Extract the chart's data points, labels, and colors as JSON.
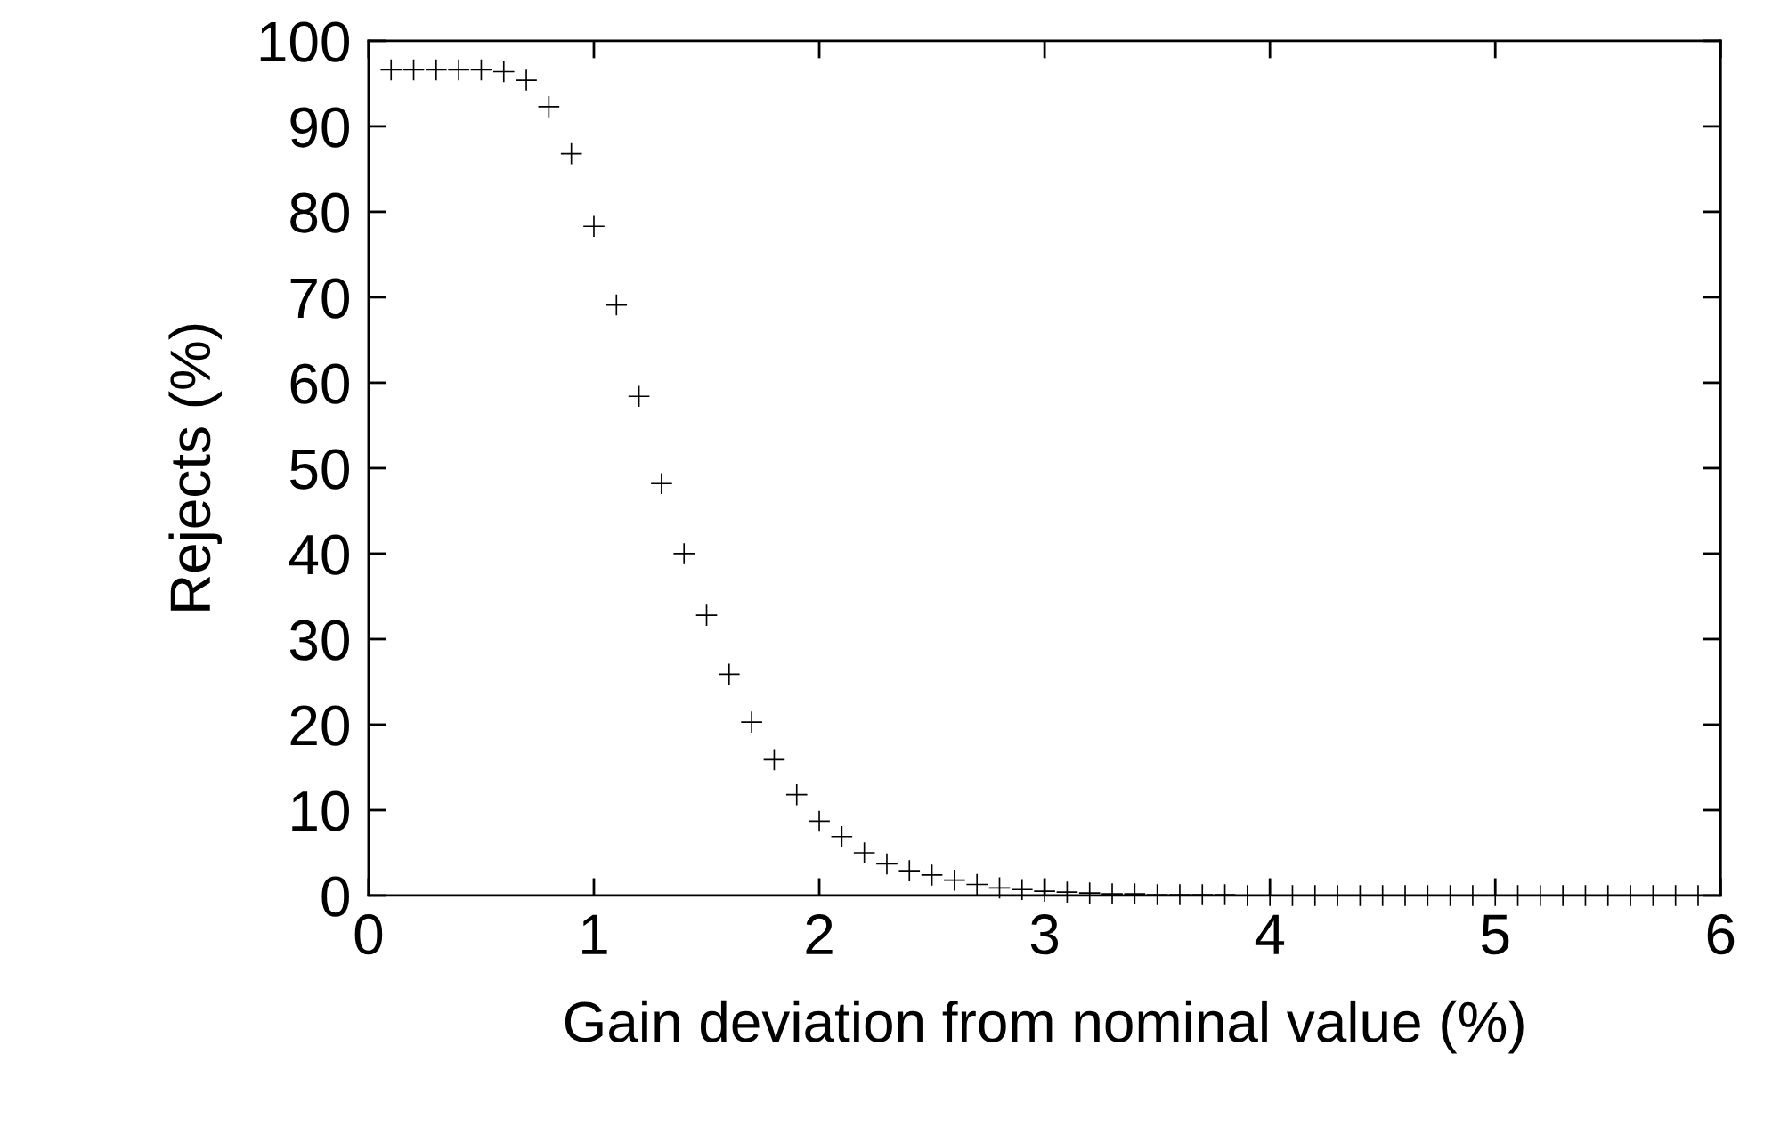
{
  "chart_data": {
    "type": "scatter",
    "xlabel": "Gain deviation from nominal value (%)",
    "ylabel": "Rejects (%)",
    "x": [
      0.1,
      0.2,
      0.3,
      0.4,
      0.5,
      0.6,
      0.7,
      0.8,
      0.9,
      1.0,
      1.1,
      1.2,
      1.3,
      1.4,
      1.5,
      1.6,
      1.7,
      1.8,
      1.9,
      2.0,
      2.1,
      2.2,
      2.3,
      2.4,
      2.5,
      2.6,
      2.7,
      2.8,
      2.9,
      3.0,
      3.1,
      3.2,
      3.3,
      3.4,
      3.5,
      3.6,
      3.7,
      3.8,
      3.9,
      4.0,
      4.1,
      4.2,
      4.3,
      4.4,
      4.5,
      4.6,
      4.7,
      4.8,
      4.9,
      5.0,
      5.1,
      5.2,
      5.3,
      5.4,
      5.5,
      5.6,
      5.7,
      5.8,
      5.9
    ],
    "series": [
      {
        "color": "#000000",
        "values": [
          96.6,
          96.6,
          96.6,
          96.6,
          96.6,
          96.4,
          95.4,
          92.3,
          86.8,
          78.3,
          69.1,
          58.4,
          48.2,
          40.0,
          32.8,
          25.9,
          20.3,
          15.9,
          11.8,
          8.7,
          6.9,
          5.0,
          3.7,
          2.9,
          2.4,
          1.8,
          1.3,
          0.9,
          0.7,
          0.5,
          0.4,
          0.3,
          0.2,
          0.2,
          0.1,
          0.1,
          0.1,
          0.1,
          0,
          0,
          0,
          0,
          0,
          0,
          0,
          0,
          0,
          0,
          0,
          0,
          0,
          0,
          0,
          0,
          0,
          0,
          0,
          0,
          0
        ]
      }
    ],
    "marker": "cross",
    "xlim": [
      0,
      6
    ],
    "ylim": [
      0,
      100
    ],
    "xticks": [
      0,
      1,
      2,
      3,
      4,
      5,
      6
    ],
    "yticks": [
      0,
      10,
      20,
      30,
      40,
      50,
      60,
      70,
      80,
      90,
      100
    ],
    "grid": false,
    "legend": false
  }
}
